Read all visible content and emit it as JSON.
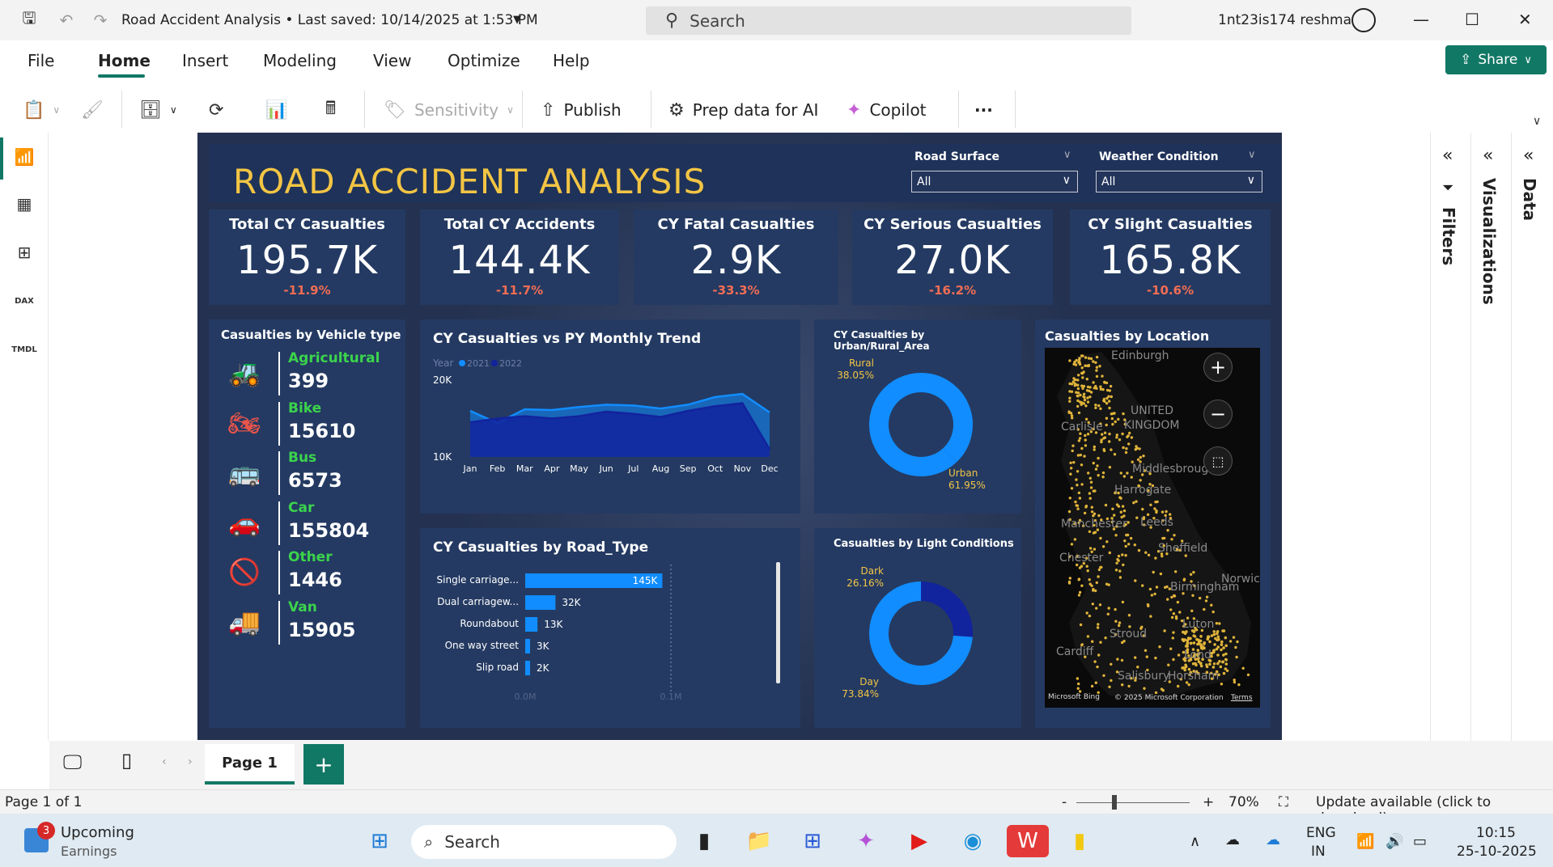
{
  "titlebar": {
    "title": "Road Accident Analysis • Last saved: 10/14/2025 at 1:53 PM",
    "search_placeholder": "Search",
    "user": "1nt23is174 reshma"
  },
  "menu": [
    "File",
    "Home",
    "Insert",
    "Modeling",
    "View",
    "Optimize",
    "Help"
  ],
  "share_label": "Share",
  "toolbar": {
    "sensitivity": "Sensitivity",
    "publish": "Publish",
    "prep_data": "Prep data for AI",
    "copilot": "Copilot",
    "more": "···"
  },
  "left_rail": {
    "dax": "DAX",
    "tmdl": "TMDL"
  },
  "report": {
    "title": "ROAD ACCIDENT ANALYSIS",
    "slicers": [
      {
        "label": "Road Surface",
        "value": "All"
      },
      {
        "label": "Weather Condition",
        "value": "All"
      }
    ],
    "kpis": [
      {
        "title": "Total CY Casualties",
        "value": "195.7K",
        "change": "-11.9%"
      },
      {
        "title": "Total CY Accidents",
        "value": "144.4K",
        "change": "-11.7%"
      },
      {
        "title": "CY Fatal Casualties",
        "value": "2.9K",
        "change": "-33.3%"
      },
      {
        "title": "CY Serious Casualties",
        "value": "27.0K",
        "change": "-16.2%"
      },
      {
        "title": "CY Slight Casualties",
        "value": "165.8K",
        "change": "-10.6%"
      }
    ],
    "vehicle": {
      "title": "Casualties by Vehicle type",
      "items": [
        {
          "name": "Agricultural",
          "value": "399",
          "icon": "tractor-icon",
          "glyph": "🚜"
        },
        {
          "name": "Bike",
          "value": "15610",
          "icon": "bike-icon",
          "glyph": "🏍"
        },
        {
          "name": "Bus",
          "value": "6573",
          "icon": "bus-icon",
          "glyph": "🚌"
        },
        {
          "name": "Car",
          "value": "155804",
          "icon": "car-icon",
          "glyph": "🚗"
        },
        {
          "name": "Other",
          "value": "1446",
          "icon": "no-entry-icon",
          "glyph": "🚫"
        },
        {
          "name": "Van",
          "value": "15905",
          "icon": "van-icon",
          "glyph": "🚚"
        }
      ]
    },
    "map": {
      "title": "Casualties by Location",
      "places": [
        "Edinburgh",
        "UNITED",
        "KINGDOM",
        "Carlisle",
        "Middlesbroug",
        "Harrogate",
        "Manchester",
        "Leeds",
        "Sheffield",
        "Chester",
        "Birmingham",
        "Norwic",
        "Stroud",
        "Luton",
        "Cardiff",
        "Lond",
        "Salisbury",
        "Horsham"
      ],
      "credit_bing": "Microsoft Bing",
      "credit_copy": "© 2025 Microsoft Corporation",
      "credit_terms": "Terms"
    }
  },
  "chart_data": [
    {
      "type": "area",
      "title": "CY Casualties vs PY Monthly Trend",
      "legend_title": "Year",
      "categories": [
        "Jan",
        "Feb",
        "Mar",
        "Apr",
        "May",
        "Jun",
        "Jul",
        "Aug",
        "Sep",
        "Oct",
        "Nov",
        "Dec"
      ],
      "series": [
        {
          "name": "2021",
          "values": [
            16000,
            14400,
            16200,
            16100,
            16500,
            16800,
            16700,
            16300,
            16800,
            17800,
            18200,
            15800
          ],
          "color": "#118dff"
        },
        {
          "name": "2022",
          "values": [
            14500,
            15000,
            15300,
            15000,
            15300,
            15900,
            15600,
            15200,
            16000,
            16600,
            17000,
            11000
          ],
          "color": "#12239e"
        }
      ],
      "yticks": [
        "10K",
        "20K"
      ],
      "ylim": [
        10000,
        20000
      ]
    },
    {
      "type": "bar",
      "title": "CY Casualties by Road_Type",
      "categories": [
        "Single carriage...",
        "Dual carriagew...",
        "Roundabout",
        "One way street",
        "Slip road"
      ],
      "values": [
        145000,
        32000,
        13000,
        3000,
        2000
      ],
      "labels": [
        "145K",
        "32K",
        "13K",
        "3K",
        "2K"
      ],
      "xticks": [
        "0.0M",
        "0.1M"
      ],
      "xlim": [
        0,
        200000
      ]
    },
    {
      "type": "pie",
      "title": "CY Casualties by Urban/Rural_Area",
      "slices": [
        {
          "name": "Rural",
          "value": 38.05,
          "label": "38.05%",
          "color": "#118dff"
        },
        {
          "name": "Urban",
          "value": 61.95,
          "label": "61.95%",
          "color": "#118dff"
        }
      ]
    },
    {
      "type": "pie",
      "title": "Casualties by Light Conditions",
      "slices": [
        {
          "name": "Dark",
          "value": 26.16,
          "label": "26.16%",
          "color": "#12239e"
        },
        {
          "name": "Day",
          "value": 73.84,
          "label": "73.84%",
          "color": "#118dff"
        }
      ]
    }
  ],
  "pages": {
    "tab": "Page 1",
    "add": "+"
  },
  "status": {
    "page": "Page 1 of 1",
    "zoom": "70%",
    "zoom_minus": "-",
    "zoom_plus": "+",
    "update": "Update available (click to download)"
  },
  "panes": {
    "filters": "Filters",
    "visualizations": "Visualizations",
    "data": "Data"
  },
  "taskbar": {
    "widget_title": "Upcoming",
    "widget_sub": "Earnings",
    "widget_badge": "3",
    "search": "Search",
    "lang1": "ENG",
    "lang2": "IN",
    "time": "10:15",
    "date": "25-10-2025"
  },
  "colors": {
    "accent": "#117865",
    "report_bg": "#243150",
    "title_yellow": "#f3c544",
    "kpi_red": "#f26d54",
    "vehicle_green": "#3bd44c"
  }
}
